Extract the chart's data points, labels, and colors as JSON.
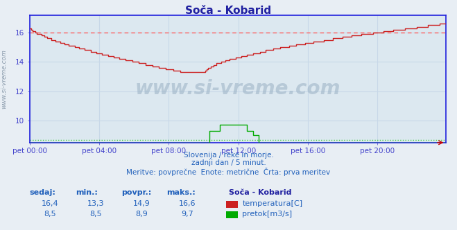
{
  "title": "Soča - Kobarid",
  "bg_color": "#e8eef4",
  "plot_bg_color": "#dce8f0",
  "grid_color": "#c8d8e8",
  "dashed_temp_color": "#ff6060",
  "dashed_flow_color": "#40cc40",
  "x_label_color": "#4444cc",
  "title_color": "#2020a0",
  "text_color": "#2060bb",
  "temp_color": "#cc2020",
  "flow_color": "#00aa00",
  "axis_color": "#2020dd",
  "ylim": [
    8.5,
    17.2
  ],
  "yticks": [
    10,
    12,
    14,
    16
  ],
  "x_ticks_labels": [
    "pet 00:00",
    "pet 04:00",
    "pet 08:00",
    "pet 12:00",
    "pet 16:00",
    "pet 20:00"
  ],
  "x_ticks_pos": [
    0,
    48,
    96,
    144,
    192,
    240
  ],
  "total_points": 288,
  "subtitle1": "Slovenija / reke in morje.",
  "subtitle2": "zadnji dan / 5 minut.",
  "subtitle3": "Meritve: povprečne  Enote: metrične  Črta: prva meritev",
  "table_headers": [
    "sedaj:",
    "min.:",
    "povpr.:",
    "maks.:"
  ],
  "table_values_temp": [
    "16,4",
    "13,3",
    "14,9",
    "16,6"
  ],
  "table_values_flow": [
    "8,5",
    "8,5",
    "8,9",
    "9,7"
  ],
  "legend_title": "Soča - Kobarid",
  "legend_temp": "temperatura[C]",
  "legend_flow": "pretok[m3/s]",
  "ylabel_text": "www.si-vreme.com",
  "dashed_temp_y": 16.0,
  "dashed_flow_y": 8.7
}
